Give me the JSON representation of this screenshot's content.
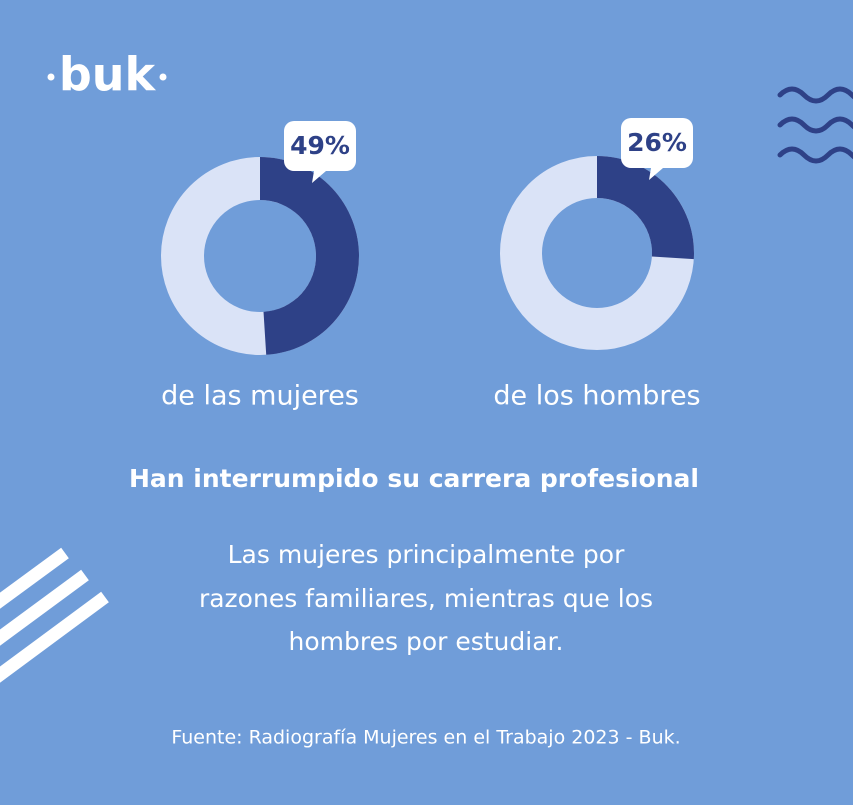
{
  "logo": "buk",
  "chart_data": [
    {
      "type": "donut",
      "values": [
        49
      ],
      "value_labels": [
        "49%"
      ],
      "caption": "de las mujeres",
      "color": "#2e4187",
      "track_color": "#dae3f7"
    },
    {
      "type": "donut",
      "values": [
        26
      ],
      "value_labels": [
        "26%"
      ],
      "caption": "de los hombres",
      "color": "#2e4187",
      "track_color": "#dae3f7"
    }
  ],
  "headline": "Han interrumpido su carrera profesional",
  "body": [
    "Las mujeres principalmente por",
    "razones familiares, mientras que los",
    "hombres por estudiar."
  ],
  "source": "Fuente: Radiografía Mujeres en el Trabajo 2023 - Buk."
}
